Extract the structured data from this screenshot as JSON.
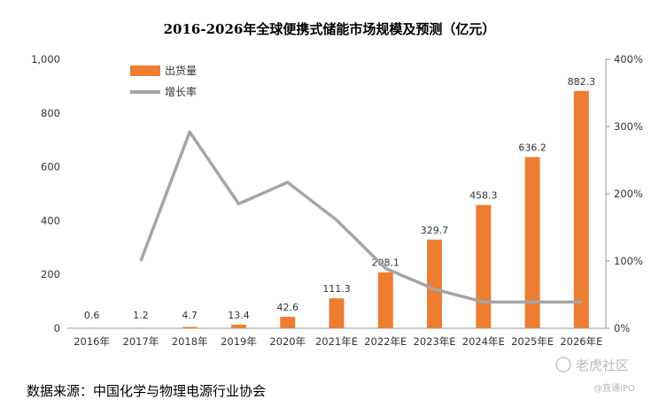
{
  "chart_data": {
    "type": "bar",
    "title": "2016-2026年全球便携式储能市场规模及预测（亿元）",
    "categories": [
      "2016年",
      "2017年",
      "2018年",
      "2019年",
      "2020年",
      "2021年E",
      "2022年E",
      "2023年E",
      "2024年E",
      "2025年E",
      "2026年E"
    ],
    "series": [
      {
        "name": "出货量",
        "type": "bar",
        "axis": "left",
        "color": "#ed7d31",
        "values": [
          0.6,
          1.2,
          4.7,
          13.4,
          42.6,
          111.3,
          208.1,
          329.7,
          458.3,
          636.2,
          882.3
        ],
        "labels": [
          "0.6",
          "1.2",
          "4.7",
          "13.4",
          "42.6",
          "111.3",
          "208.1",
          "329.7",
          "458.3",
          "636.2",
          "882.3"
        ]
      },
      {
        "name": "增长率",
        "type": "line",
        "axis": "right",
        "color": "#a5a5a5",
        "values": [
          null,
          100,
          292,
          185,
          217,
          161,
          89,
          58,
          39,
          39,
          39
        ]
      }
    ],
    "left_axis": {
      "ylim": [
        0,
        1000
      ],
      "ticks": [
        0,
        200,
        400,
        600,
        800,
        1000
      ],
      "tick_labels": [
        "0",
        "200",
        "400",
        "600",
        "800",
        "1,000"
      ]
    },
    "right_axis": {
      "ylim": [
        0,
        400
      ],
      "ticks": [
        0,
        100,
        200,
        300,
        400
      ],
      "tick_labels": [
        "0%",
        "100%",
        "200%",
        "300%",
        "400%"
      ]
    },
    "legend": {
      "position": "top-left",
      "items": [
        "出货量",
        "增长率"
      ]
    },
    "source": "数据来源：中国化学与物理电源行业协会",
    "watermark": {
      "main": "老虎社区",
      "sub": "@直通IPO"
    }
  }
}
